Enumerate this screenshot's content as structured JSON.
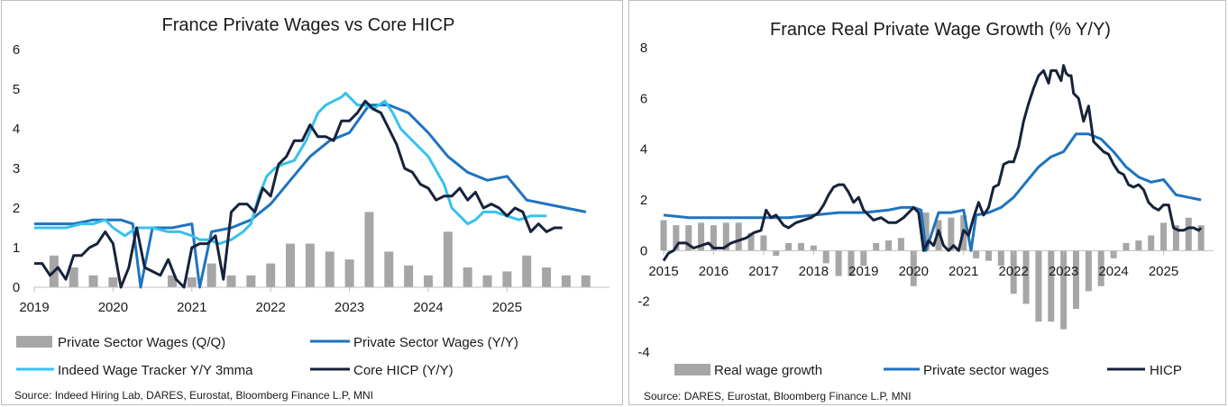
{
  "colors": {
    "bar": "#a6a6a6",
    "private_wages": "#1f73bf",
    "indeed": "#36c2ee",
    "hicp": "#17223b",
    "axis": "#bfbfbf"
  },
  "chart_data": [
    {
      "id": "left",
      "type": "line",
      "title": "France Private Wages vs Core HICP",
      "ylim": [
        0,
        6
      ],
      "yticks": [
        "0",
        "1",
        "2",
        "3",
        "4",
        "5",
        "6"
      ],
      "xlim": [
        2019,
        2026.3
      ],
      "xticks": [
        "2019",
        "2020",
        "2021",
        "2022",
        "2023",
        "2024",
        "2025"
      ],
      "legend": [
        {
          "label": "Private Sector Wages (Q/Q)",
          "kind": "bar"
        },
        {
          "label": "Private Sector Wages (Y/Y)",
          "kind": "line",
          "series": "private_wages"
        },
        {
          "label": "Indeed Wage Tracker Y/Y 3mma",
          "kind": "line",
          "series": "indeed"
        },
        {
          "label": "Core HICP (Y/Y)",
          "kind": "line",
          "series": "hicp"
        }
      ],
      "source": "Source: Indeed Hiring Lab, DARES, Eurostat, Bloomberg Finance L.P, MNI",
      "bars": {
        "name": "Private Sector Wages (Q/Q)",
        "x": [
          2019.25,
          2019.5,
          2019.75,
          2020.0,
          2020.75,
          2021.0,
          2021.25,
          2021.5,
          2021.75,
          2022.0,
          2022.25,
          2022.5,
          2022.75,
          2023.0,
          2023.25,
          2023.5,
          2023.75,
          2024.0,
          2024.25,
          2024.5,
          2024.75,
          2025.0,
          2025.25,
          2025.5,
          2025.75,
          2026.0
        ],
        "values": [
          0.8,
          0.5,
          0.3,
          0.25,
          0.3,
          0.25,
          0.6,
          0.3,
          0.3,
          0.6,
          1.1,
          1.1,
          0.9,
          0.7,
          1.9,
          0.9,
          0.55,
          0.3,
          1.4,
          0.5,
          0.3,
          0.4,
          0.8,
          0.5,
          0.3,
          0.3
        ]
      },
      "series": [
        {
          "name": "Private Sector Wages (Y/Y)",
          "key": "private_wages",
          "x": [
            2019.0,
            2019.5,
            2019.75,
            2020.0,
            2020.1,
            2020.25,
            2020.35,
            2020.5,
            2020.75,
            2021.0,
            2021.1,
            2021.25,
            2021.5,
            2021.75,
            2022.0,
            2022.25,
            2022.5,
            2022.75,
            2023.0,
            2023.25,
            2023.5,
            2023.75,
            2024.0,
            2024.25,
            2024.5,
            2024.75,
            2025.0,
            2025.25,
            2025.5,
            2025.75,
            2026.0
          ],
          "values": [
            1.6,
            1.6,
            1.7,
            1.7,
            1.7,
            1.6,
            0.0,
            1.5,
            1.5,
            1.6,
            0.0,
            1.4,
            1.5,
            1.7,
            2.1,
            2.7,
            3.3,
            3.7,
            3.9,
            4.6,
            4.6,
            4.4,
            3.9,
            3.3,
            2.9,
            2.7,
            2.8,
            2.2,
            2.1,
            2.0,
            1.9
          ]
        },
        {
          "name": "Indeed Wage Tracker Y/Y 3mma",
          "key": "indeed",
          "x": [
            2019.0,
            2019.2,
            2019.4,
            2019.6,
            2019.75,
            2019.9,
            2020.0,
            2020.15,
            2020.3,
            2020.5,
            2020.7,
            2020.85,
            2021.0,
            2021.1,
            2021.2,
            2021.35,
            2021.5,
            2021.65,
            2021.75,
            2021.85,
            2021.95,
            2022.05,
            2022.15,
            2022.3,
            2022.45,
            2022.6,
            2022.7,
            2022.8,
            2022.9,
            2022.95,
            2023.1,
            2023.2,
            2023.3,
            2023.45,
            2023.55,
            2023.65,
            2023.75,
            2023.9,
            2024.0,
            2024.2,
            2024.3,
            2024.4,
            2024.5,
            2024.6,
            2024.7,
            2024.85,
            2025.0,
            2025.15,
            2025.3,
            2025.5
          ],
          "values": [
            1.5,
            1.5,
            1.5,
            1.6,
            1.6,
            1.7,
            1.5,
            1.3,
            1.5,
            1.5,
            1.4,
            1.4,
            1.3,
            1.2,
            1.2,
            1.1,
            1.2,
            1.4,
            1.6,
            2.3,
            2.8,
            3.0,
            3.1,
            3.2,
            3.7,
            4.4,
            4.6,
            4.7,
            4.8,
            4.9,
            4.6,
            4.6,
            4.5,
            4.7,
            4.4,
            4.0,
            3.8,
            3.5,
            3.3,
            2.6,
            2.0,
            1.8,
            1.6,
            1.7,
            1.9,
            1.9,
            1.8,
            1.7,
            1.8,
            1.8
          ]
        },
        {
          "name": "Core HICP (Y/Y)",
          "key": "hicp",
          "x": [
            2019.0,
            2019.1,
            2019.2,
            2019.3,
            2019.4,
            2019.5,
            2019.6,
            2019.7,
            2019.8,
            2019.9,
            2020.0,
            2020.1,
            2020.2,
            2020.3,
            2020.4,
            2020.5,
            2020.6,
            2020.7,
            2020.8,
            2020.9,
            2021.0,
            2021.1,
            2021.2,
            2021.3,
            2021.4,
            2021.5,
            2021.6,
            2021.7,
            2021.8,
            2021.9,
            2022.0,
            2022.1,
            2022.2,
            2022.3,
            2022.4,
            2022.5,
            2022.6,
            2022.7,
            2022.8,
            2022.9,
            2023.0,
            2023.1,
            2023.2,
            2023.3,
            2023.4,
            2023.5,
            2023.6,
            2023.7,
            2023.8,
            2023.9,
            2024.0,
            2024.1,
            2024.2,
            2024.3,
            2024.4,
            2024.5,
            2024.6,
            2024.7,
            2024.8,
            2024.9,
            2025.0,
            2025.1,
            2025.2,
            2025.3,
            2025.4,
            2025.5,
            2025.6,
            2025.7
          ],
          "values": [
            0.6,
            0.6,
            0.3,
            0.5,
            0.2,
            0.8,
            0.8,
            1.0,
            1.1,
            1.4,
            1.1,
            0.0,
            0.5,
            1.5,
            0.5,
            0.4,
            0.3,
            0.7,
            0.2,
            0.0,
            1.0,
            1.1,
            1.1,
            1.3,
            0.2,
            1.9,
            2.1,
            2.1,
            1.9,
            2.5,
            2.3,
            3.1,
            3.3,
            3.7,
            3.7,
            4.1,
            3.8,
            3.8,
            3.7,
            4.2,
            4.2,
            4.4,
            4.7,
            4.5,
            4.4,
            4.0,
            3.6,
            3.0,
            2.9,
            2.6,
            2.5,
            2.2,
            2.3,
            2.3,
            2.5,
            2.2,
            2.4,
            2.0,
            2.1,
            2.0,
            1.8,
            2.0,
            1.9,
            1.4,
            1.6,
            1.4,
            1.5,
            1.5
          ]
        }
      ]
    },
    {
      "id": "right",
      "type": "line",
      "title": "France Real Private Wage Growth (% Y/Y)",
      "ylim": [
        -4,
        8
      ],
      "yticks": [
        "-4",
        "-2",
        "0",
        "2",
        "4",
        "6",
        "8"
      ],
      "xlim": [
        2015,
        2026.0
      ],
      "xticks": [
        "2015",
        "2016",
        "2017",
        "2018",
        "2019",
        "2020",
        "2021",
        "2022",
        "2023",
        "2024",
        "2025"
      ],
      "legend": [
        {
          "label": "Real wage growth",
          "kind": "bar"
        },
        {
          "label": "Private sector wages",
          "kind": "line",
          "series": "private_wages"
        },
        {
          "label": "HICP",
          "kind": "line",
          "series": "hicp"
        }
      ],
      "source": "Source: DARES, Eurostat, Bloomberg Finance L.P, MNI",
      "bars": {
        "name": "Real wage growth",
        "x": [
          2015.0,
          2015.25,
          2015.5,
          2015.75,
          2016.0,
          2016.25,
          2016.5,
          2016.75,
          2017.0,
          2017.25,
          2017.5,
          2017.75,
          2018.0,
          2018.25,
          2018.5,
          2018.75,
          2019.0,
          2019.25,
          2019.5,
          2019.75,
          2020.0,
          2020.25,
          2020.5,
          2020.75,
          2021.0,
          2021.25,
          2021.5,
          2021.75,
          2022.0,
          2022.25,
          2022.5,
          2022.75,
          2023.0,
          2023.25,
          2023.5,
          2023.75,
          2024.0,
          2024.25,
          2024.5,
          2024.75,
          2025.0,
          2025.25,
          2025.5,
          2025.75
        ],
        "values": [
          1.2,
          1.0,
          1.0,
          1.1,
          1.0,
          1.1,
          1.1,
          0.7,
          0.6,
          -0.2,
          0.3,
          0.3,
          0.2,
          -0.5,
          -1.0,
          -1.0,
          -0.6,
          0.3,
          0.4,
          0.5,
          -1.4,
          1.5,
          1.2,
          1.3,
          1.4,
          -0.3,
          -0.4,
          -0.6,
          -1.7,
          -2.1,
          -2.8,
          -2.8,
          -3.1,
          -2.3,
          -1.6,
          -1.4,
          -0.3,
          0.3,
          0.4,
          0.6,
          1.1,
          1.0,
          1.3,
          1.0
        ]
      },
      "series": [
        {
          "name": "Private sector wages",
          "key": "private_wages",
          "x": [
            2015.0,
            2015.5,
            2016.0,
            2016.5,
            2017.0,
            2017.5,
            2018.0,
            2018.5,
            2019.0,
            2019.5,
            2019.75,
            2020.0,
            2020.15,
            2020.25,
            2020.5,
            2020.75,
            2021.0,
            2021.15,
            2021.25,
            2021.5,
            2021.75,
            2022.0,
            2022.25,
            2022.5,
            2022.75,
            2023.0,
            2023.25,
            2023.5,
            2023.75,
            2024.0,
            2024.25,
            2024.5,
            2024.75,
            2025.0,
            2025.25,
            2025.5,
            2025.75
          ],
          "values": [
            1.4,
            1.3,
            1.3,
            1.3,
            1.3,
            1.3,
            1.4,
            1.5,
            1.5,
            1.6,
            1.7,
            1.7,
            1.6,
            0.0,
            1.5,
            1.5,
            1.6,
            0.0,
            1.4,
            1.5,
            1.7,
            2.1,
            2.7,
            3.3,
            3.7,
            3.9,
            4.6,
            4.6,
            4.4,
            3.9,
            3.3,
            2.9,
            2.7,
            2.8,
            2.2,
            2.1,
            2.0
          ]
        },
        {
          "name": "HICP",
          "key": "hicp",
          "x": [
            2015.0,
            2015.1,
            2015.2,
            2015.3,
            2015.45,
            2015.6,
            2015.75,
            2015.9,
            2016.0,
            2016.2,
            2016.35,
            2016.5,
            2016.65,
            2016.8,
            2016.95,
            2017.05,
            2017.15,
            2017.25,
            2017.4,
            2017.5,
            2017.65,
            2017.8,
            2017.95,
            2018.1,
            2018.2,
            2018.3,
            2018.4,
            2018.5,
            2018.6,
            2018.7,
            2018.8,
            2018.9,
            2019.0,
            2019.1,
            2019.2,
            2019.35,
            2019.5,
            2019.65,
            2019.8,
            2019.95,
            2020.0,
            2020.1,
            2020.2,
            2020.3,
            2020.4,
            2020.5,
            2020.6,
            2020.7,
            2020.8,
            2020.9,
            2021.0,
            2021.1,
            2021.2,
            2021.3,
            2021.4,
            2021.5,
            2021.6,
            2021.7,
            2021.8,
            2021.9,
            2022.0,
            2022.1,
            2022.2,
            2022.3,
            2022.4,
            2022.5,
            2022.6,
            2022.7,
            2022.75,
            2022.85,
            2022.95,
            2023.0,
            2023.05,
            2023.1,
            2023.15,
            2023.2,
            2023.3,
            2023.4,
            2023.5,
            2023.6,
            2023.7,
            2023.8,
            2023.9,
            2024.0,
            2024.1,
            2024.2,
            2024.3,
            2024.4,
            2024.5,
            2024.6,
            2024.7,
            2024.8,
            2024.9,
            2025.0,
            2025.1,
            2025.2,
            2025.3,
            2025.4,
            2025.5,
            2025.6,
            2025.7,
            2025.75
          ],
          "values": [
            -0.4,
            -0.1,
            0.0,
            0.3,
            0.3,
            0.1,
            0.2,
            0.3,
            0.1,
            0.1,
            0.3,
            0.4,
            0.5,
            0.7,
            0.8,
            1.6,
            1.3,
            1.4,
            1.0,
            0.9,
            1.1,
            1.2,
            1.3,
            1.5,
            1.8,
            2.2,
            2.5,
            2.6,
            2.6,
            2.3,
            1.9,
            2.1,
            1.6,
            1.4,
            1.2,
            1.3,
            1.1,
            1.1,
            1.3,
            1.6,
            1.7,
            1.5,
            0.0,
            0.4,
            0.2,
            0.8,
            0.2,
            0.0,
            0.2,
            0.0,
            0.8,
            0.6,
            1.3,
            1.9,
            1.4,
            1.7,
            2.5,
            2.6,
            3.4,
            3.5,
            3.5,
            4.1,
            5.1,
            5.8,
            6.4,
            6.9,
            7.1,
            6.6,
            7.1,
            7.1,
            6.7,
            7.3,
            7.0,
            6.9,
            6.9,
            6.2,
            6.0,
            5.1,
            5.7,
            4.3,
            4.1,
            3.9,
            3.8,
            3.4,
            3.1,
            3.0,
            2.6,
            2.5,
            2.6,
            2.4,
            1.9,
            1.7,
            1.6,
            1.8,
            1.8,
            0.9,
            0.8,
            0.8,
            0.9,
            0.9,
            0.8,
            0.9
          ]
        }
      ]
    }
  ]
}
